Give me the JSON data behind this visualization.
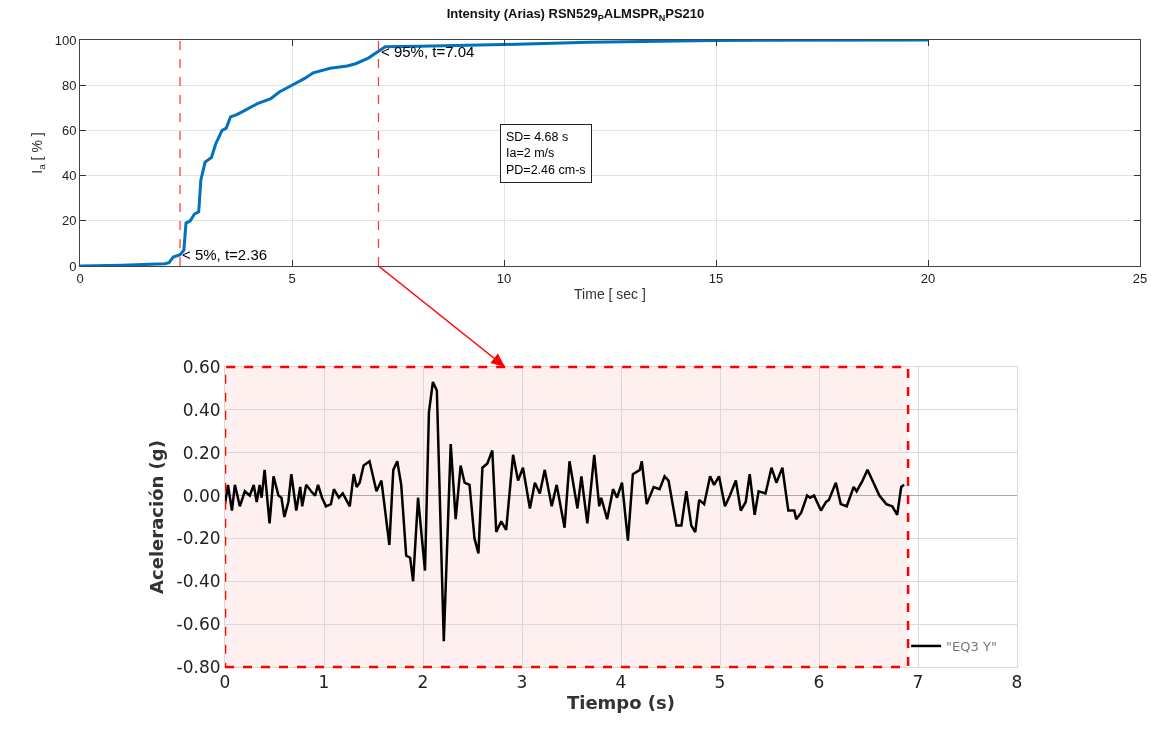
{
  "chart_data": [
    {
      "type": "line",
      "title": "Intensity (Arias) RSN529$_{P}$ALMSPR$_{N}$PS210",
      "xlabel": "Time [ sec ]",
      "ylabel": "I$_{a}$ [ % ]",
      "series": [
        {
          "color": "#0072bd",
          "x": [
            0,
            1,
            2,
            2.1,
            2.2,
            2.36,
            2.45,
            2.5,
            2.6,
            2.7,
            2.8,
            2.85,
            2.95,
            3.1,
            3.2,
            3.35,
            3.45,
            3.55,
            3.7,
            3.9,
            4.2,
            4.5,
            4.7,
            5,
            5.3,
            5.5,
            5.9,
            6.3,
            6.5,
            6.8,
            7.04,
            7.2,
            8,
            10,
            12,
            15,
            20
          ],
          "values": [
            0,
            0.3,
            1,
            1.5,
            4,
            5,
            7,
            19,
            20,
            23,
            24,
            38,
            46,
            48,
            54,
            60,
            61,
            66,
            67,
            69,
            72,
            74,
            77,
            80,
            83,
            85.5,
            87.5,
            88.5,
            89.5,
            92,
            95,
            97,
            97.2,
            98,
            99,
            99.8,
            100
          ]
        }
      ],
      "xlim": [
        0,
        25
      ],
      "xticks": [
        0,
        5,
        10,
        15,
        20,
        25
      ],
      "ylim": [
        0,
        100
      ],
      "yticks": [
        0,
        20,
        40,
        60,
        80,
        100
      ],
      "grid": true,
      "legend": false,
      "line_style": "solid",
      "marker": "none",
      "ref_lines": [
        {
          "axis": "x",
          "value": 2.36,
          "color": "#ff3333",
          "line_style": "dashed"
        },
        {
          "axis": "x",
          "value": 7.04,
          "color": "#ff3333",
          "line_style": "dashed"
        }
      ],
      "annotations": [
        {
          "text": "< 5%, t=2.36",
          "x": 2.36,
          "y": 5
        },
        {
          "text": "< 95%, t=7.04",
          "x": 7.04,
          "y": 95
        },
        "SD= 4.68 s\nIa=2 m/s\nPD=2.46 cm-s"
      ]
    },
    {
      "type": "line",
      "xlabel": "Tiempo (s)",
      "ylabel": "Aceleración (g)",
      "series": [
        {
          "name": "\"EQ3 Y\"",
          "color": "#000000",
          "x": [
            0,
            0.03,
            0.07,
            0.1,
            0.15,
            0.2,
            0.25,
            0.29,
            0.32,
            0.35,
            0.37,
            0.4,
            0.45,
            0.49,
            0.54,
            0.57,
            0.6,
            0.64,
            0.67,
            0.72,
            0.76,
            0.78,
            0.82,
            0.87,
            0.91,
            0.94,
            0.98,
            1.02,
            1.07,
            1.1,
            1.15,
            1.19,
            1.26,
            1.3,
            1.33,
            1.36,
            1.4,
            1.46,
            1.53,
            1.58,
            1.66,
            1.7,
            1.74,
            1.78,
            1.83,
            1.87,
            1.9,
            1.95,
            2.02,
            2.06,
            2.1,
            2.14,
            2.21,
            2.28,
            2.33,
            2.38,
            2.42,
            2.47,
            2.52,
            2.56,
            2.6,
            2.65,
            2.7,
            2.74,
            2.79,
            2.84,
            2.91,
            2.96,
            3.01,
            3.08,
            3.13,
            3.18,
            3.23,
            3.3,
            3.35,
            3.43,
            3.48,
            3.56,
            3.6,
            3.66,
            3.73,
            3.78,
            3.8,
            3.86,
            3.92,
            3.96,
            4.01,
            4.07,
            4.12,
            4.19,
            4.21,
            4.26,
            4.33,
            4.39,
            4.44,
            4.48,
            4.56,
            4.61,
            4.66,
            4.71,
            4.75,
            4.79,
            4.84,
            4.9,
            4.94,
            4.99,
            5.05,
            5.1,
            5.16,
            5.21,
            5.26,
            5.3,
            5.35,
            5.39,
            5.46,
            5.52,
            5.57,
            5.63,
            5.69,
            5.75,
            5.77,
            5.82,
            5.88,
            5.91,
            5.95,
            6.02,
            6.07,
            6.1,
            6.17,
            6.22,
            6.28,
            6.35,
            6.38,
            6.44,
            6.49,
            6.54,
            6.61,
            6.68,
            6.74,
            6.79,
            6.83,
            6.86
          ],
          "values": [
            -0.04,
            0.05,
            -0.07,
            0.05,
            -0.05,
            0.02,
            0,
            0.05,
            -0.03,
            0.05,
            -0.01,
            0.12,
            -0.13,
            0.09,
            0,
            -0.01,
            -0.1,
            -0.03,
            0.1,
            -0.07,
            0.04,
            -0.05,
            0.05,
            0.02,
            0,
            0.05,
            -0.01,
            -0.05,
            -0.04,
            0.03,
            -0.01,
            0.01,
            -0.05,
            0.1,
            0.04,
            0.06,
            0.14,
            0.16,
            0.02,
            0.07,
            -0.23,
            0.12,
            0.16,
            0.05,
            -0.28,
            -0.29,
            -0.4,
            -0.01,
            -0.35,
            0.39,
            0.53,
            0.49,
            -0.68,
            0.24,
            -0.11,
            0.14,
            0.06,
            0.05,
            -0.2,
            -0.27,
            0.13,
            0.15,
            0.21,
            -0.17,
            -0.12,
            -0.16,
            0.19,
            0.07,
            0.13,
            -0.06,
            0.06,
            0.01,
            0.12,
            -0.05,
            0.05,
            -0.15,
            0.16,
            -0.06,
            0.09,
            -0.13,
            0.19,
            -0.05,
            -0.01,
            -0.11,
            0.03,
            -0.01,
            0.06,
            -0.21,
            0.1,
            0.12,
            0.16,
            -0.04,
            0.04,
            0.03,
            0.09,
            0.07,
            -0.14,
            -0.14,
            0.02,
            -0.14,
            -0.17,
            -0.02,
            -0.04,
            0.09,
            0.05,
            0.09,
            -0.05,
            0,
            0.07,
            -0.07,
            -0.03,
            0.1,
            -0.09,
            0.02,
            0.01,
            0.13,
            0.06,
            0.13,
            -0.07,
            -0.07,
            -0.11,
            -0.08,
            0,
            -0.01,
            0,
            -0.07,
            -0.03,
            -0.02,
            0.06,
            -0.04,
            -0.05,
            0.04,
            0.02,
            0.07,
            0.12,
            0.07,
            0,
            -0.04,
            -0.05,
            -0.09,
            0.04,
            0.05
          ]
        }
      ],
      "xlim": [
        0,
        8
      ],
      "xticks": [
        0,
        1,
        2,
        3,
        4,
        5,
        6,
        7,
        8
      ],
      "ylim": [
        -0.8,
        0.6
      ],
      "yticks": [
        {
          "value": -0.8,
          "label": "-0.80"
        },
        {
          "value": -0.6,
          "label": "-0.60"
        },
        {
          "value": -0.4,
          "label": "-0.40"
        },
        {
          "value": -0.2,
          "label": "-0.20"
        },
        {
          "value": 0,
          "label": "0.00"
        },
        {
          "value": 0.2,
          "label": "0.20"
        },
        {
          "value": 0.4,
          "label": "0.40"
        },
        {
          "value": 0.6,
          "label": "0.60"
        }
      ],
      "grid": true,
      "legend": "bottom right",
      "line_style": "solid",
      "marker": "none",
      "bands": [
        {
          "axis": "x",
          "from": 0,
          "to": 6.9,
          "color": "#ff0000"
        }
      ]
    }
  ]
}
